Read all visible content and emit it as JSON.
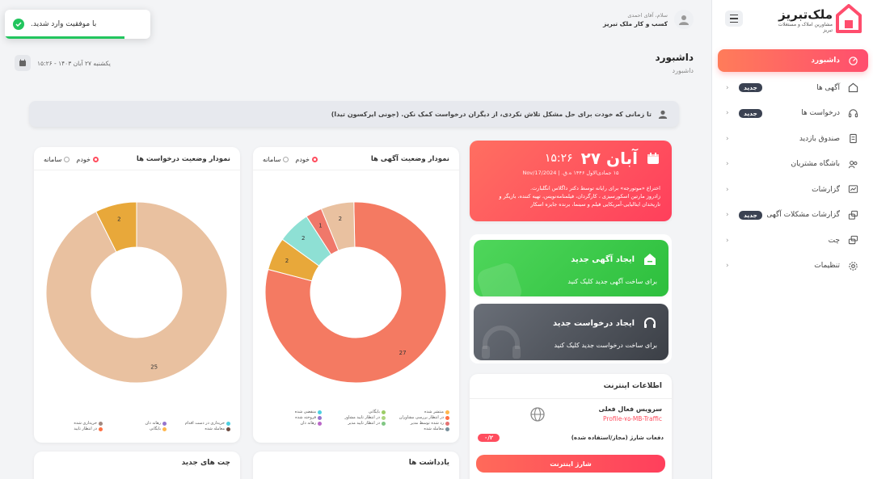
{
  "brand": {
    "name": "ملک‌تبریز",
    "tagline": "مشاورین املاک و مستغلات تبریز"
  },
  "user": {
    "greeting": "سلام، آقای احمدی",
    "company": "کسب و کار ملک تبریز"
  },
  "toast": {
    "message": "با موفقیت وارد شدید."
  },
  "header": {
    "title": "داشبورد",
    "breadcrumb": "داشبورد",
    "date": "یکشنبه ۲۷ آبان ۱۴۰۳ - ۱۵:۲۶"
  },
  "quote": "تا زمانی که خودت برای حل مشکل تلاش نکردی، از دیگران درخواست کمک نکن. (جونی ایرکسون تیدا)",
  "sidebar": {
    "items": [
      {
        "label": "داشبورد",
        "badge": "",
        "icon": "dashboard-icon"
      },
      {
        "label": "آگهی ها",
        "badge": "جدید",
        "icon": "home-icon"
      },
      {
        "label": "درخواست ها",
        "badge": "جدید",
        "icon": "headset-icon"
      },
      {
        "label": "صندوق بازدید",
        "badge": "",
        "icon": "receipt-icon"
      },
      {
        "label": "باشگاه مشتریان",
        "badge": "",
        "icon": "users-icon"
      },
      {
        "label": "گزارشات",
        "badge": "",
        "icon": "chart-icon"
      },
      {
        "label": "گزارشات مشکلات آگهی",
        "badge": "جدید",
        "icon": "report-icon"
      },
      {
        "label": "چت",
        "badge": "",
        "icon": "chat-icon"
      },
      {
        "label": "تنظیمات",
        "badge": "",
        "icon": "gear-icon"
      }
    ]
  },
  "date_card": {
    "day": "۲۷ آبان",
    "time": "۱۵:۲۶",
    "sub": "۱۵ جمادی‌الاول ۱۴۴۶ ه.ق. | 2024/Nov/17",
    "events": [
      "اختراع «موتورجه» برای رایانه توسط دکتر داگلاس انگلبارت.",
      "زادروز مارتین اسکورسیزی ، کارگردان، فیلمنامه‌نویس، تهیه کننده، بازیگر و تاریخدان ایتالیایی-آمریکایی فیلم و سینما، برنده جایزه اسکار"
    ]
  },
  "actions": {
    "new_ad": {
      "title": "ایجاد آگهی جدید",
      "desc": "برای ساخت آگهی جدید کلیک کنید"
    },
    "new_request": {
      "title": "ایجاد درخواست جدید",
      "desc": "برای ساخت درخواست جدید کلیک کنید"
    }
  },
  "internet": {
    "title": "اطلاعات اینترنت",
    "service_title": "سرویس فعال فعلی",
    "service_name": "Profile-۷۵-MB-Traffic",
    "charge_label": "دفعات شارژ (مجاز/استفاده شده)",
    "charge_value": "۰/۲",
    "button": "شارژ اینترنت"
  },
  "charts": {
    "ads": {
      "title": "نمودار وضعیت آگهی ها",
      "radio_mine": "خودم",
      "radio_system": "سامانه",
      "legend": [
        {
          "label": "منتشر شده",
          "color": "#ffb74d"
        },
        {
          "label": "بایگانی",
          "color": "#9ccc65"
        },
        {
          "label": "منقضی شده",
          "color": "#4dd0e1"
        },
        {
          "label": "در انتظار بررسی مشاوران",
          "color": "#ff7043"
        },
        {
          "label": "در انتظار تایید مشاور",
          "color": "#aed581"
        },
        {
          "label": "فروخته شده",
          "color": "#9575cd"
        },
        {
          "label": "رد شده توسط مدیر",
          "color": "#e57373"
        },
        {
          "label": "در انتظار تایید مدیر",
          "color": "#81c784"
        },
        {
          "label": "رهانه دان",
          "color": "#ba68c8"
        },
        {
          "label": "معامله شده",
          "color": "#78909c"
        }
      ]
    },
    "requests": {
      "title": "نمودار وضعیت درخواست ها",
      "radio_mine": "خودم",
      "radio_system": "سامانه",
      "legend": [
        {
          "label": "خریداری در دست اقدام",
          "color": "#4dd0e1"
        },
        {
          "label": "رهانه دان",
          "color": "#9575cd"
        },
        {
          "label": "خریداری شده",
          "color": "#a1887f"
        },
        {
          "label": "معامله شده",
          "color": "#6d4c41"
        },
        {
          "label": "بایگانی",
          "color": "#ffb74d"
        },
        {
          "label": "در انتظار تایید",
          "color": "#ff7043"
        }
      ]
    }
  },
  "chart_data": [
    {
      "type": "pie",
      "title": "نمودار وضعیت آگهی ها",
      "slices": [
        {
          "label": "",
          "value": 27,
          "color": "#f47a62"
        },
        {
          "label": "",
          "value": 2,
          "color": "#e8a83a"
        },
        {
          "label": "",
          "value": 2,
          "color": "#8ee0d4"
        },
        {
          "label": "",
          "value": 1,
          "color": "#f0786a"
        },
        {
          "label": "",
          "value": 2,
          "color": "#e9c1a0"
        }
      ]
    },
    {
      "type": "pie",
      "title": "نمودار وضعیت درخواست ها",
      "slices": [
        {
          "label": "",
          "value": 25,
          "color": "#e9c1a0"
        },
        {
          "label": "",
          "value": 2,
          "color": "#e8a83a"
        }
      ]
    }
  ],
  "bottom": {
    "notes_title": "یادداشت ها",
    "chats_title": "چت های جدید"
  }
}
